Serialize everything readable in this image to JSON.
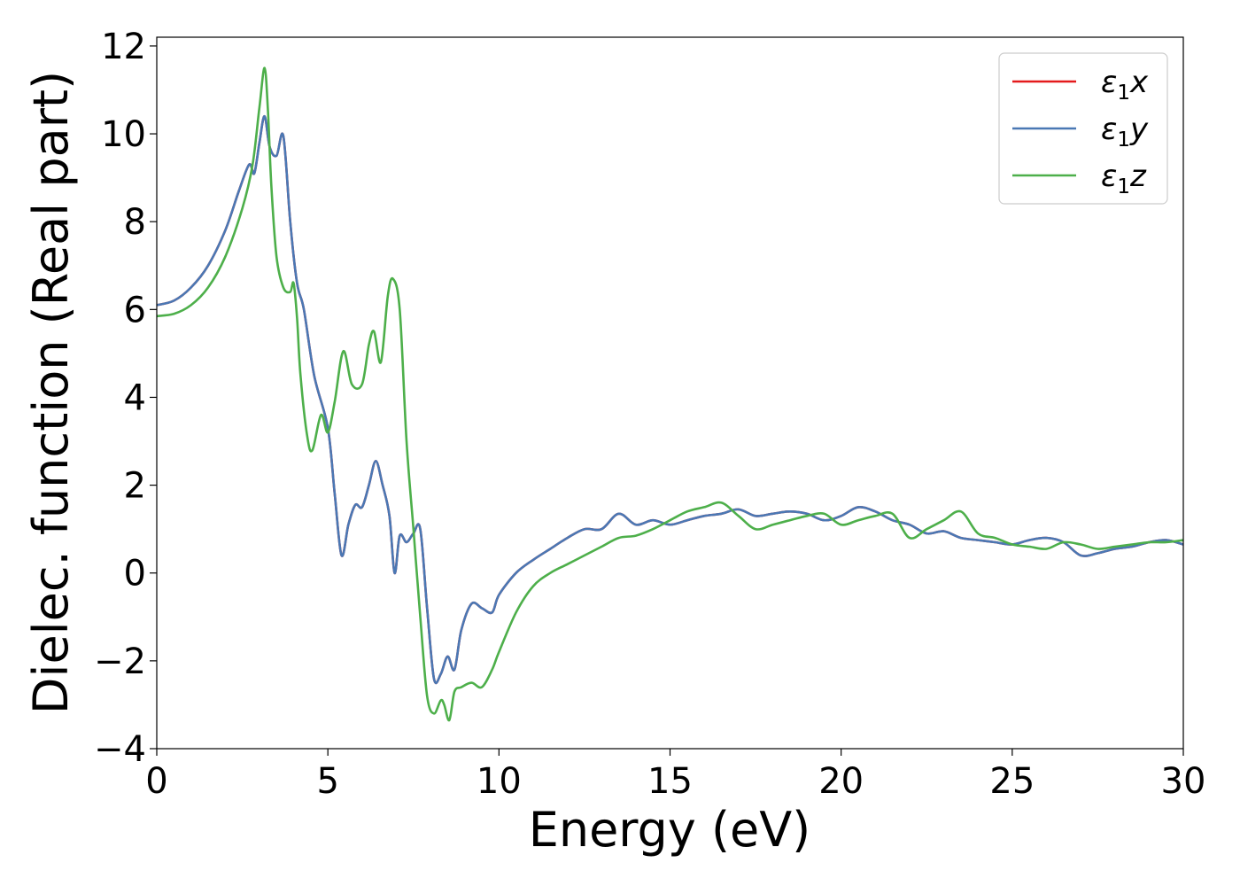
{
  "chart_data": {
    "type": "line",
    "title": "",
    "xlabel": "Energy (eV)",
    "ylabel": "Dielec. function (Real part)",
    "xlim": [
      0,
      30
    ],
    "ylim": [
      -4.0,
      12.2
    ],
    "xticks": [
      0,
      5,
      10,
      15,
      20,
      25,
      30
    ],
    "xtick_labels": [
      "0",
      "5",
      "10",
      "15",
      "20",
      "25",
      "30"
    ],
    "yticks": [
      -4,
      -2,
      0,
      2,
      4,
      6,
      8,
      10,
      12
    ],
    "ytick_labels": [
      "−4",
      "−2",
      "0",
      "2",
      "4",
      "6",
      "8",
      "10",
      "12"
    ],
    "grid": false,
    "legend_position": "top-right",
    "series": [
      {
        "name": "ε1x",
        "label_main": "ε",
        "label_sub": "1",
        "label_tail": "x",
        "color": "#e41a1c",
        "x": [
          0,
          0.5,
          1,
          1.5,
          2,
          2.4,
          2.7,
          2.85,
          3.0,
          3.15,
          3.3,
          3.5,
          3.7,
          3.9,
          4.1,
          4.3,
          4.6,
          5.0,
          5.2,
          5.4,
          5.6,
          5.8,
          6.0,
          6.2,
          6.4,
          6.6,
          6.8,
          6.95,
          7.1,
          7.3,
          7.5,
          7.7,
          7.9,
          8.1,
          8.3,
          8.5,
          8.7,
          8.9,
          9.2,
          9.5,
          9.8,
          10.0,
          10.5,
          11.0,
          11.5,
          12.0,
          12.5,
          13.0,
          13.5,
          14.0,
          14.5,
          15.0,
          15.5,
          16.0,
          16.5,
          17.0,
          17.5,
          18.0,
          18.5,
          19.0,
          19.5,
          20.0,
          20.5,
          21.0,
          21.5,
          22.0,
          22.5,
          23.0,
          23.5,
          24.0,
          24.5,
          25.0,
          25.5,
          26.0,
          26.5,
          27.0,
          27.5,
          28.0,
          28.5,
          29.0,
          29.5,
          30.0
        ],
        "y": [
          6.1,
          6.2,
          6.5,
          7.0,
          7.8,
          8.7,
          9.3,
          9.1,
          9.8,
          10.4,
          9.7,
          9.5,
          9.95,
          8.0,
          6.6,
          6.0,
          4.5,
          3.3,
          1.8,
          0.4,
          1.1,
          1.55,
          1.5,
          2.0,
          2.55,
          2.0,
          1.3,
          0.0,
          0.85,
          0.7,
          0.9,
          1.0,
          -0.8,
          -2.4,
          -2.3,
          -1.9,
          -2.2,
          -1.3,
          -0.7,
          -0.8,
          -0.9,
          -0.5,
          0.0,
          0.3,
          0.55,
          0.8,
          1.0,
          1.0,
          1.35,
          1.1,
          1.2,
          1.1,
          1.2,
          1.3,
          1.35,
          1.45,
          1.3,
          1.35,
          1.4,
          1.35,
          1.2,
          1.3,
          1.5,
          1.4,
          1.2,
          1.1,
          0.9,
          0.95,
          0.8,
          0.75,
          0.7,
          0.65,
          0.75,
          0.8,
          0.7,
          0.4,
          0.45,
          0.55,
          0.6,
          0.7,
          0.75,
          0.65
        ]
      },
      {
        "name": "ε1y",
        "label_main": "ε",
        "label_sub": "1",
        "label_tail": "y",
        "color": "#4a78b4",
        "x": [
          0,
          0.5,
          1,
          1.5,
          2,
          2.4,
          2.7,
          2.85,
          3.0,
          3.15,
          3.3,
          3.5,
          3.7,
          3.9,
          4.1,
          4.3,
          4.6,
          5.0,
          5.2,
          5.4,
          5.6,
          5.8,
          6.0,
          6.2,
          6.4,
          6.6,
          6.8,
          6.95,
          7.1,
          7.3,
          7.5,
          7.7,
          7.9,
          8.1,
          8.3,
          8.5,
          8.7,
          8.9,
          9.2,
          9.5,
          9.8,
          10.0,
          10.5,
          11.0,
          11.5,
          12.0,
          12.5,
          13.0,
          13.5,
          14.0,
          14.5,
          15.0,
          15.5,
          16.0,
          16.5,
          17.0,
          17.5,
          18.0,
          18.5,
          19.0,
          19.5,
          20.0,
          20.5,
          21.0,
          21.5,
          22.0,
          22.5,
          23.0,
          23.5,
          24.0,
          24.5,
          25.0,
          25.5,
          26.0,
          26.5,
          27.0,
          27.5,
          28.0,
          28.5,
          29.0,
          29.5,
          30.0
        ],
        "y": [
          6.1,
          6.2,
          6.5,
          7.0,
          7.8,
          8.7,
          9.3,
          9.1,
          9.8,
          10.4,
          9.7,
          9.5,
          9.95,
          8.0,
          6.6,
          6.0,
          4.5,
          3.3,
          1.8,
          0.4,
          1.1,
          1.55,
          1.5,
          2.0,
          2.55,
          2.0,
          1.3,
          0.0,
          0.85,
          0.7,
          0.9,
          1.0,
          -0.8,
          -2.4,
          -2.3,
          -1.9,
          -2.2,
          -1.3,
          -0.7,
          -0.8,
          -0.9,
          -0.5,
          0.0,
          0.3,
          0.55,
          0.8,
          1.0,
          1.0,
          1.35,
          1.1,
          1.2,
          1.1,
          1.2,
          1.3,
          1.35,
          1.45,
          1.3,
          1.35,
          1.4,
          1.35,
          1.2,
          1.3,
          1.5,
          1.4,
          1.2,
          1.1,
          0.9,
          0.95,
          0.8,
          0.75,
          0.7,
          0.65,
          0.75,
          0.8,
          0.7,
          0.4,
          0.45,
          0.55,
          0.6,
          0.7,
          0.75,
          0.65
        ]
      },
      {
        "name": "ε1z",
        "label_main": "ε",
        "label_sub": "1",
        "label_tail": "z",
        "color": "#4daf4a",
        "x": [
          0,
          0.5,
          1,
          1.5,
          2,
          2.5,
          2.8,
          3.0,
          3.15,
          3.25,
          3.35,
          3.5,
          3.7,
          3.9,
          4.0,
          4.1,
          4.2,
          4.4,
          4.55,
          4.8,
          5.0,
          5.2,
          5.45,
          5.7,
          6.0,
          6.2,
          6.35,
          6.55,
          6.75,
          6.9,
          7.1,
          7.3,
          7.5,
          7.7,
          7.9,
          8.1,
          8.3,
          8.4,
          8.55,
          8.7,
          8.9,
          9.2,
          9.5,
          9.8,
          10.0,
          10.5,
          11.0,
          11.5,
          12.0,
          12.5,
          13.0,
          13.5,
          14.0,
          14.5,
          15.0,
          15.5,
          16.0,
          16.5,
          17.0,
          17.5,
          18.0,
          18.5,
          19.0,
          19.5,
          20.0,
          20.5,
          21.0,
          21.5,
          22.0,
          22.5,
          23.0,
          23.5,
          24.0,
          24.5,
          25.0,
          25.5,
          26.0,
          26.5,
          27.0,
          27.5,
          28.0,
          28.5,
          29.0,
          29.5,
          30.0
        ],
        "y": [
          5.85,
          5.9,
          6.1,
          6.5,
          7.2,
          8.3,
          9.3,
          10.6,
          11.5,
          10.5,
          8.8,
          7.2,
          6.5,
          6.4,
          6.6,
          5.8,
          4.5,
          3.1,
          2.8,
          3.6,
          3.2,
          3.9,
          5.05,
          4.3,
          4.3,
          5.2,
          5.5,
          4.8,
          6.3,
          6.7,
          6.0,
          3.0,
          1.0,
          -1.0,
          -2.8,
          -3.2,
          -2.9,
          -3.0,
          -3.35,
          -2.7,
          -2.6,
          -2.5,
          -2.6,
          -2.2,
          -1.8,
          -0.9,
          -0.3,
          0.0,
          0.2,
          0.4,
          0.6,
          0.8,
          0.85,
          1.0,
          1.2,
          1.4,
          1.5,
          1.6,
          1.3,
          1.0,
          1.1,
          1.2,
          1.3,
          1.35,
          1.1,
          1.2,
          1.3,
          1.35,
          0.8,
          1.0,
          1.2,
          1.4,
          0.9,
          0.8,
          0.65,
          0.6,
          0.55,
          0.7,
          0.65,
          0.55,
          0.6,
          0.65,
          0.7,
          0.7,
          0.75
        ]
      }
    ]
  }
}
